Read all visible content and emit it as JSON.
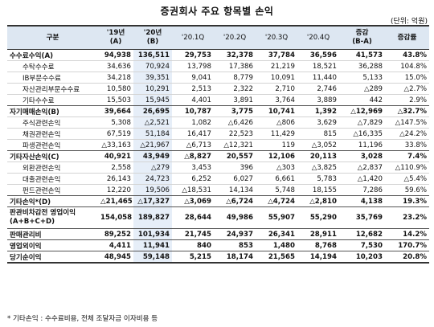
{
  "title": "증권회사 주요 항목별 손익",
  "unit": "(단위: 억원)",
  "footnote": "* 기타손익 : 수수료비용, 전체 조달자금 이자비용 등",
  "headers": {
    "item": "구분",
    "y19": "'19년",
    "y19_sub": "(A)",
    "y20": "'20년",
    "y20_sub": "(B)",
    "q1": "'20.1Q",
    "q2": "'20.2Q",
    "q3": "'20.3Q",
    "q4": "'20.4Q",
    "diff": "증감",
    "diff_sub": "(B-A)",
    "rate": "증감률"
  },
  "rows": [
    {
      "label": "수수료수익(A)",
      "type": "major",
      "y19": "94,938",
      "y20": "136,511",
      "q1": "29,753",
      "q2": "32,378",
      "q3": "37,784",
      "q4": "36,596",
      "diff": "41,573",
      "rate": "43.8%"
    },
    {
      "label": "수탁수수료",
      "type": "minor",
      "y19": "34,636",
      "y20": "70,924",
      "q1": "13,798",
      "q2": "17,386",
      "q3": "21,219",
      "q4": "18,521",
      "diff": "36,288",
      "rate": "104.8%"
    },
    {
      "label": "IB부문수수료",
      "type": "minor",
      "y19": "34,218",
      "y20": "39,351",
      "q1": "9,041",
      "q2": "8,779",
      "q3": "10,091",
      "q4": "11,440",
      "diff": "5,133",
      "rate": "15.0%"
    },
    {
      "label": "자산관리부문수수료",
      "type": "minor",
      "y19": "10,580",
      "y20": "10,291",
      "q1": "2,513",
      "q2": "2,322",
      "q3": "2,710",
      "q4": "2,746",
      "diff": "△289",
      "rate": "△2.7%"
    },
    {
      "label": "기타수수료",
      "type": "minor",
      "y19": "15,503",
      "y20": "15,945",
      "q1": "4,401",
      "q2": "3,891",
      "q3": "3,764",
      "q4": "3,889",
      "diff": "442",
      "rate": "2.9%"
    },
    {
      "label": "자기매매손익(B)",
      "type": "major",
      "y19": "39,664",
      "y20": "26,695",
      "q1": "10,787",
      "q2": "3,775",
      "q3": "10,741",
      "q4": "1,392",
      "diff": "△12,969",
      "rate": "△32.7%"
    },
    {
      "label": "주식관련손익",
      "type": "minor",
      "y19": "5,308",
      "y20": "△2,521",
      "q1": "1,082",
      "q2": "△6,426",
      "q3": "△806",
      "q4": "3,629",
      "diff": "△7,829",
      "rate": "△147.5%"
    },
    {
      "label": "채권관련손익",
      "type": "minor",
      "y19": "67,519",
      "y20": "51,184",
      "q1": "16,417",
      "q2": "22,523",
      "q3": "11,429",
      "q4": "815",
      "diff": "△16,335",
      "rate": "△24.2%"
    },
    {
      "label": "파생관련손익",
      "type": "minor",
      "y19": "△33,163",
      "y20": "△21,967",
      "q1": "△6,713",
      "q2": "△12,321",
      "q3": "119",
      "q4": "△3,052",
      "diff": "11,196",
      "rate": "33.8%"
    },
    {
      "label": "기타자산손익(C)",
      "type": "major",
      "y19": "40,921",
      "y20": "43,949",
      "q1": "△8,827",
      "q2": "20,557",
      "q3": "12,106",
      "q4": "20,113",
      "diff": "3,028",
      "rate": "7.4%"
    },
    {
      "label": "외환관련손익",
      "type": "minor",
      "y19": "2,558",
      "y20": "△279",
      "q1": "3,453",
      "q2": "396",
      "q3": "△303",
      "q4": "△3,825",
      "diff": "△2,837",
      "rate": "△110.9%"
    },
    {
      "label": "대출관련손익",
      "type": "minor",
      "y19": "26,143",
      "y20": "24,723",
      "q1": "6,252",
      "q2": "6,027",
      "q3": "6,661",
      "q4": "5,783",
      "diff": "△1,420",
      "rate": "△5.4%"
    },
    {
      "label": "펀드관련손익",
      "type": "minor",
      "y19": "12,220",
      "y20": "19,506",
      "q1": "△18,531",
      "q2": "14,134",
      "q3": "5,748",
      "q4": "18,155",
      "diff": "7,286",
      "rate": "59.6%"
    },
    {
      "label": "기타손익*(D)",
      "type": "major",
      "y19": "△21,465",
      "y20": "△17,327",
      "q1": "△3,069",
      "q2": "△6,724",
      "q3": "△4,724",
      "q4": "△2,810",
      "diff": "4,138",
      "rate": "19.3%"
    },
    {
      "label": "판관비차감전 영업이익(A+B+C+D)",
      "type": "major tall",
      "y19": "154,058",
      "y20": "189,827",
      "q1": "28,644",
      "q2": "49,986",
      "q3": "55,907",
      "q4": "55,290",
      "diff": "35,769",
      "rate": "23.2%"
    },
    {
      "label": "판매관리비",
      "type": "major",
      "y19": "89,252",
      "y20": "101,934",
      "q1": "21,745",
      "q2": "24,937",
      "q3": "26,341",
      "q4": "28,911",
      "diff": "12,682",
      "rate": "14.2%"
    },
    {
      "label": "영업외이익",
      "type": "major",
      "y19": "4,411",
      "y20": "11,941",
      "q1": "840",
      "q2": "853",
      "q3": "1,480",
      "q4": "8,768",
      "diff": "7,530",
      "rate": "170.7%"
    },
    {
      "label": "당기순이익",
      "type": "major last",
      "y19": "48,945",
      "y20": "59,148",
      "q1": "5,215",
      "q2": "18,174",
      "q3": "21,565",
      "q4": "14,194",
      "diff": "10,203",
      "rate": "20.8%"
    }
  ]
}
